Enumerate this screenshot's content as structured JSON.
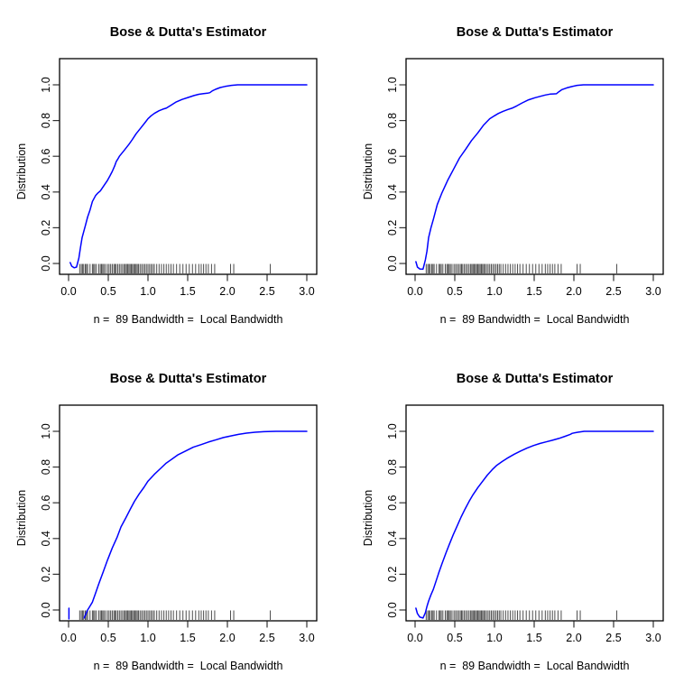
{
  "page": {
    "background": "#ffffff"
  },
  "colors": {
    "curve": "#0000ff",
    "axis": "#000000",
    "tick": "#333333",
    "rug": "#2e2e2e",
    "text": "#000000"
  },
  "rug": {
    "x_values": [
      0.14,
      0.16,
      0.175,
      0.19,
      0.21,
      0.225,
      0.24,
      0.27,
      0.3,
      0.315,
      0.33,
      0.35,
      0.38,
      0.4,
      0.415,
      0.43,
      0.445,
      0.465,
      0.49,
      0.51,
      0.53,
      0.55,
      0.57,
      0.585,
      0.6,
      0.62,
      0.64,
      0.66,
      0.68,
      0.7,
      0.715,
      0.73,
      0.745,
      0.76,
      0.775,
      0.79,
      0.805,
      0.82,
      0.835,
      0.85,
      0.865,
      0.88,
      0.9,
      0.92,
      0.94,
      0.96,
      0.98,
      1.0,
      1.02,
      1.04,
      1.06,
      1.08,
      1.11,
      1.14,
      1.17,
      1.2,
      1.23,
      1.26,
      1.29,
      1.32,
      1.36,
      1.4,
      1.44,
      1.48,
      1.52,
      1.56,
      1.6,
      1.64,
      1.67,
      1.7,
      1.73,
      1.76,
      1.8,
      1.84,
      2.04,
      2.08,
      2.54
    ]
  },
  "chart_data": [
    {
      "id": "top-left",
      "type": "line",
      "title": "Bose & Dutta's Estimator",
      "xlabel": "n =  89 Bandwidth =  Local Bandwidth",
      "ylabel": "Distribution",
      "xlim": [
        0.0,
        3.0
      ],
      "ylim": [
        0.0,
        1.0
      ],
      "xticks": [
        0.0,
        0.5,
        1.0,
        1.5,
        2.0,
        2.5,
        3.0
      ],
      "xtick_labels": [
        "0.0",
        "0.5",
        "1.0",
        "1.5",
        "2.0",
        "2.5",
        "3.0"
      ],
      "yticks": [
        0.0,
        0.2,
        0.4,
        0.6,
        0.8,
        1.0
      ],
      "ytick_labels": [
        "0.0",
        "0.2",
        "0.4",
        "0.6",
        "0.8",
        "1.0"
      ],
      "grid": false,
      "legend": null,
      "line_color": "#0000ff",
      "n": 89,
      "bandwidth": "Local Bandwidth",
      "curve_segments": [
        [
          [
            0.02,
            0.005
          ],
          [
            0.04,
            -0.015
          ],
          [
            0.07,
            -0.024
          ],
          [
            0.1,
            -0.02
          ],
          [
            0.13,
            0.03
          ],
          [
            0.15,
            0.09
          ],
          [
            0.17,
            0.145
          ],
          [
            0.21,
            0.21
          ],
          [
            0.24,
            0.26
          ],
          [
            0.27,
            0.3
          ],
          [
            0.3,
            0.347
          ],
          [
            0.34,
            0.38
          ],
          [
            0.37,
            0.395
          ],
          [
            0.4,
            0.406
          ],
          [
            0.45,
            0.439
          ],
          [
            0.49,
            0.465
          ],
          [
            0.52,
            0.49
          ],
          [
            0.55,
            0.515
          ],
          [
            0.58,
            0.545
          ],
          [
            0.6,
            0.57
          ],
          [
            0.62,
            0.585
          ],
          [
            0.64,
            0.6
          ],
          [
            0.7,
            0.633
          ],
          [
            0.76,
            0.667
          ],
          [
            0.8,
            0.692
          ],
          [
            0.85,
            0.726
          ],
          [
            0.91,
            0.759
          ],
          [
            0.97,
            0.793
          ],
          [
            1.0,
            0.81
          ],
          [
            1.04,
            0.827
          ],
          [
            1.08,
            0.84
          ],
          [
            1.14,
            0.855
          ],
          [
            1.19,
            0.864
          ],
          [
            1.23,
            0.869
          ],
          [
            1.29,
            0.886
          ],
          [
            1.35,
            0.903
          ],
          [
            1.43,
            0.918
          ],
          [
            1.51,
            0.93
          ],
          [
            1.58,
            0.94
          ],
          [
            1.64,
            0.947
          ],
          [
            1.7,
            0.951
          ],
          [
            1.75,
            0.953
          ],
          [
            1.78,
            0.956
          ],
          [
            1.81,
            0.966
          ],
          [
            1.85,
            0.975
          ],
          [
            1.91,
            0.985
          ],
          [
            1.97,
            0.991
          ],
          [
            2.05,
            0.997
          ],
          [
            2.13,
            1.0
          ],
          [
            3.0,
            1.0
          ]
        ]
      ]
    },
    {
      "id": "top-right",
      "type": "line",
      "title": "Bose & Dutta's Estimator",
      "xlabel": "n =  89 Bandwidth =  Local Bandwidth",
      "ylabel": "Distribution",
      "xlim": [
        0.0,
        3.0
      ],
      "ylim": [
        0.0,
        1.0
      ],
      "xticks": [
        0.0,
        0.5,
        1.0,
        1.5,
        2.0,
        2.5,
        3.0
      ],
      "xtick_labels": [
        "0.0",
        "0.5",
        "1.0",
        "1.5",
        "2.0",
        "2.5",
        "3.0"
      ],
      "yticks": [
        0.0,
        0.2,
        0.4,
        0.6,
        0.8,
        1.0
      ],
      "ytick_labels": [
        "0.0",
        "0.2",
        "0.4",
        "0.6",
        "0.8",
        "1.0"
      ],
      "grid": false,
      "legend": null,
      "line_color": "#0000ff",
      "n": 89,
      "bandwidth": "Local Bandwidth",
      "curve_segments": [
        [
          [
            0.01,
            0.01
          ],
          [
            0.03,
            -0.02
          ],
          [
            0.06,
            -0.031
          ],
          [
            0.1,
            -0.032
          ],
          [
            0.13,
            0.02
          ],
          [
            0.15,
            0.07
          ],
          [
            0.17,
            0.145
          ],
          [
            0.2,
            0.2
          ],
          [
            0.23,
            0.246
          ],
          [
            0.28,
            0.33
          ],
          [
            0.34,
            0.397
          ],
          [
            0.41,
            0.465
          ],
          [
            0.49,
            0.532
          ],
          [
            0.56,
            0.591
          ],
          [
            0.64,
            0.641
          ],
          [
            0.71,
            0.688
          ],
          [
            0.79,
            0.731
          ],
          [
            0.86,
            0.773
          ],
          [
            0.94,
            0.81
          ],
          [
            1.0,
            0.827
          ],
          [
            1.05,
            0.84
          ],
          [
            1.11,
            0.852
          ],
          [
            1.17,
            0.862
          ],
          [
            1.22,
            0.869
          ],
          [
            1.28,
            0.882
          ],
          [
            1.35,
            0.899
          ],
          [
            1.43,
            0.916
          ],
          [
            1.51,
            0.928
          ],
          [
            1.58,
            0.936
          ],
          [
            1.64,
            0.943
          ],
          [
            1.7,
            0.948
          ],
          [
            1.74,
            0.949
          ],
          [
            1.78,
            0.95
          ],
          [
            1.81,
            0.961
          ],
          [
            1.85,
            0.973
          ],
          [
            1.91,
            0.983
          ],
          [
            1.97,
            0.99
          ],
          [
            2.04,
            0.997
          ],
          [
            2.12,
            1.0
          ],
          [
            3.0,
            1.0
          ]
        ]
      ]
    },
    {
      "id": "bottom-left",
      "type": "line",
      "title": "Bose & Dutta's Estimator",
      "xlabel": "n =  89 Bandwidth =  Local Bandwidth",
      "ylabel": "Distribution",
      "xlim": [
        0.0,
        3.0
      ],
      "ylim": [
        0.0,
        1.0
      ],
      "xticks": [
        0.0,
        0.5,
        1.0,
        1.5,
        2.0,
        2.5,
        3.0
      ],
      "xtick_labels": [
        "0.0",
        "0.5",
        "1.0",
        "1.5",
        "2.0",
        "2.5",
        "3.0"
      ],
      "yticks": [
        0.0,
        0.2,
        0.4,
        0.6,
        0.8,
        1.0
      ],
      "ytick_labels": [
        "0.0",
        "0.2",
        "0.4",
        "0.6",
        "0.8",
        "1.0"
      ],
      "grid": false,
      "legend": null,
      "line_color": "#0000ff",
      "n": 89,
      "bandwidth": "Local Bandwidth",
      "curve_segments": [
        [
          [
            0.005,
            0.01
          ],
          [
            0.005,
            -0.05
          ]
        ],
        [
          [
            0.195,
            -0.045
          ],
          [
            0.24,
            0.0
          ],
          [
            0.27,
            0.022
          ],
          [
            0.3,
            0.044
          ],
          [
            0.34,
            0.094
          ],
          [
            0.38,
            0.145
          ],
          [
            0.435,
            0.212
          ],
          [
            0.49,
            0.279
          ],
          [
            0.55,
            0.347
          ],
          [
            0.61,
            0.406
          ],
          [
            0.66,
            0.465
          ],
          [
            0.72,
            0.515
          ],
          [
            0.78,
            0.566
          ],
          [
            0.83,
            0.608
          ],
          [
            0.89,
            0.65
          ],
          [
            0.95,
            0.687
          ],
          [
            1.0,
            0.721
          ],
          [
            1.08,
            0.759
          ],
          [
            1.16,
            0.793
          ],
          [
            1.23,
            0.822
          ],
          [
            1.31,
            0.847
          ],
          [
            1.38,
            0.869
          ],
          [
            1.48,
            0.891
          ],
          [
            1.57,
            0.911
          ],
          [
            1.67,
            0.926
          ],
          [
            1.76,
            0.94
          ],
          [
            1.86,
            0.953
          ],
          [
            1.95,
            0.965
          ],
          [
            2.05,
            0.975
          ],
          [
            2.14,
            0.983
          ],
          [
            2.24,
            0.99
          ],
          [
            2.35,
            0.995
          ],
          [
            2.46,
            0.998
          ],
          [
            2.61,
            1.0
          ],
          [
            3.0,
            1.0
          ]
        ]
      ]
    },
    {
      "id": "bottom-right",
      "type": "line",
      "title": "Bose & Dutta's Estimator",
      "xlabel": "n =  89 Bandwidth =  Local Bandwidth",
      "ylabel": "Distribution",
      "xlim": [
        0.0,
        3.0
      ],
      "ylim": [
        0.0,
        1.0
      ],
      "xticks": [
        0.0,
        0.5,
        1.0,
        1.5,
        2.0,
        2.5,
        3.0
      ],
      "xtick_labels": [
        "0.0",
        "0.5",
        "1.0",
        "1.5",
        "2.0",
        "2.5",
        "3.0"
      ],
      "yticks": [
        0.0,
        0.2,
        0.4,
        0.6,
        0.8,
        1.0
      ],
      "ytick_labels": [
        "0.0",
        "0.2",
        "0.4",
        "0.6",
        "0.8",
        "1.0"
      ],
      "grid": false,
      "legend": null,
      "line_color": "#0000ff",
      "n": 89,
      "bandwidth": "Local Bandwidth",
      "curve_segments": [
        [
          [
            0.01,
            0.01
          ],
          [
            0.03,
            -0.02
          ],
          [
            0.06,
            -0.04
          ],
          [
            0.1,
            -0.045
          ],
          [
            0.13,
            -0.015
          ],
          [
            0.15,
            0.02
          ],
          [
            0.17,
            0.05
          ],
          [
            0.2,
            0.085
          ],
          [
            0.23,
            0.115
          ],
          [
            0.27,
            0.17
          ],
          [
            0.3,
            0.21
          ],
          [
            0.34,
            0.26
          ],
          [
            0.39,
            0.32
          ],
          [
            0.43,
            0.365
          ],
          [
            0.48,
            0.42
          ],
          [
            0.53,
            0.47
          ],
          [
            0.58,
            0.52
          ],
          [
            0.63,
            0.565
          ],
          [
            0.68,
            0.607
          ],
          [
            0.73,
            0.645
          ],
          [
            0.79,
            0.685
          ],
          [
            0.85,
            0.72
          ],
          [
            0.91,
            0.755
          ],
          [
            0.97,
            0.785
          ],
          [
            1.03,
            0.81
          ],
          [
            1.1,
            0.832
          ],
          [
            1.17,
            0.852
          ],
          [
            1.25,
            0.872
          ],
          [
            1.33,
            0.89
          ],
          [
            1.41,
            0.906
          ],
          [
            1.49,
            0.92
          ],
          [
            1.57,
            0.932
          ],
          [
            1.65,
            0.941
          ],
          [
            1.73,
            0.95
          ],
          [
            1.81,
            0.96
          ],
          [
            1.89,
            0.972
          ],
          [
            1.95,
            0.982
          ],
          [
            1.98,
            0.989
          ],
          [
            2.05,
            0.995
          ],
          [
            2.13,
            1.0
          ],
          [
            3.0,
            1.0
          ]
        ]
      ]
    }
  ]
}
